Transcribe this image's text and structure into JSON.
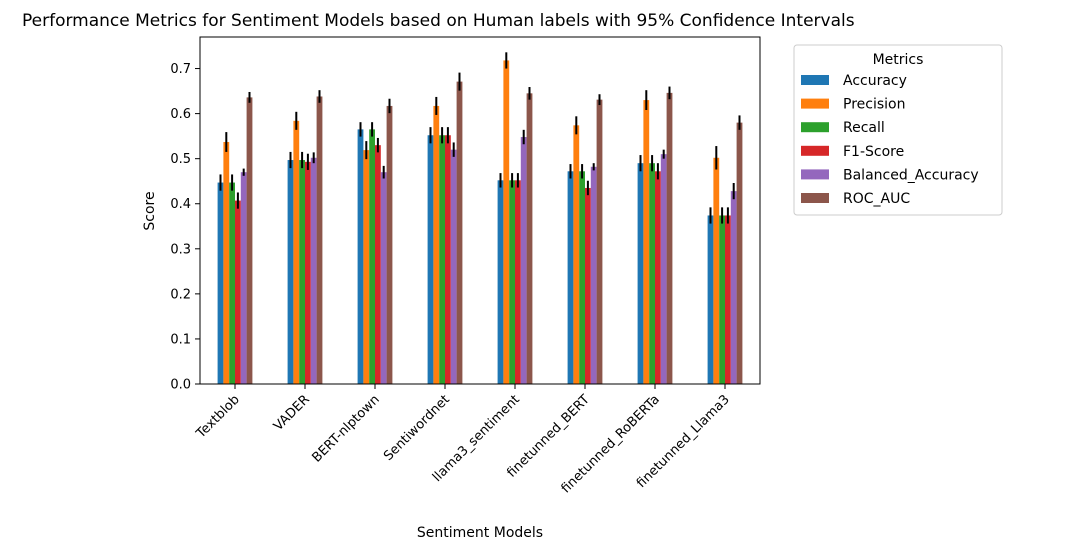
{
  "chart_data": {
    "type": "bar",
    "title": "Performance Metrics for Sentiment Models based on Human labels with 95% Confidence Intervals",
    "xlabel": "Sentiment Models",
    "ylabel": "Score",
    "ylim": [
      0,
      0.77
    ],
    "yticks": [
      "0.0",
      "0.1",
      "0.2",
      "0.3",
      "0.4",
      "0.5",
      "0.6",
      "0.7"
    ],
    "categories": [
      "Textblob",
      "VADER",
      "BERT-nlptown",
      "Sentiwordnet",
      "llama3_sentiment",
      "finetunned_BERT",
      "finetunned_RoBERTa",
      "finetunned_Llama3"
    ],
    "legend_title": "Metrics",
    "legend_position": "outside-right-top",
    "grid": false,
    "series": [
      {
        "name": "Accuracy",
        "color": "#1f77b4",
        "values": [
          0.447,
          0.497,
          0.565,
          0.552,
          0.452,
          0.472,
          0.49,
          0.374
        ],
        "errors": [
          0.018,
          0.018,
          0.016,
          0.018,
          0.016,
          0.016,
          0.018,
          0.018
        ]
      },
      {
        "name": "Precision",
        "color": "#ff7f0e",
        "values": [
          0.537,
          0.584,
          0.519,
          0.617,
          0.718,
          0.574,
          0.63,
          0.502
        ],
        "errors": [
          0.022,
          0.02,
          0.02,
          0.02,
          0.018,
          0.02,
          0.022,
          0.026
        ]
      },
      {
        "name": "Recall",
        "color": "#2ca02c",
        "values": [
          0.447,
          0.497,
          0.565,
          0.552,
          0.452,
          0.472,
          0.49,
          0.374
        ],
        "errors": [
          0.018,
          0.018,
          0.016,
          0.018,
          0.016,
          0.016,
          0.018,
          0.018
        ]
      },
      {
        "name": "F1-Score",
        "color": "#d62728",
        "values": [
          0.407,
          0.493,
          0.53,
          0.552,
          0.452,
          0.435,
          0.472,
          0.374
        ],
        "errors": [
          0.018,
          0.018,
          0.016,
          0.018,
          0.016,
          0.016,
          0.018,
          0.018
        ]
      },
      {
        "name": "Balanced_Accuracy",
        "color": "#9467bd",
        "values": [
          0.47,
          0.502,
          0.47,
          0.52,
          0.548,
          0.482,
          0.51,
          0.428
        ],
        "errors": [
          0.008,
          0.012,
          0.014,
          0.016,
          0.016,
          0.008,
          0.01,
          0.018
        ]
      },
      {
        "name": "ROC_AUC",
        "color": "#8c564b",
        "values": [
          0.636,
          0.638,
          0.617,
          0.671,
          0.645,
          0.631,
          0.646,
          0.58
        ],
        "errors": [
          0.012,
          0.014,
          0.016,
          0.02,
          0.014,
          0.012,
          0.014,
          0.016
        ]
      }
    ]
  }
}
